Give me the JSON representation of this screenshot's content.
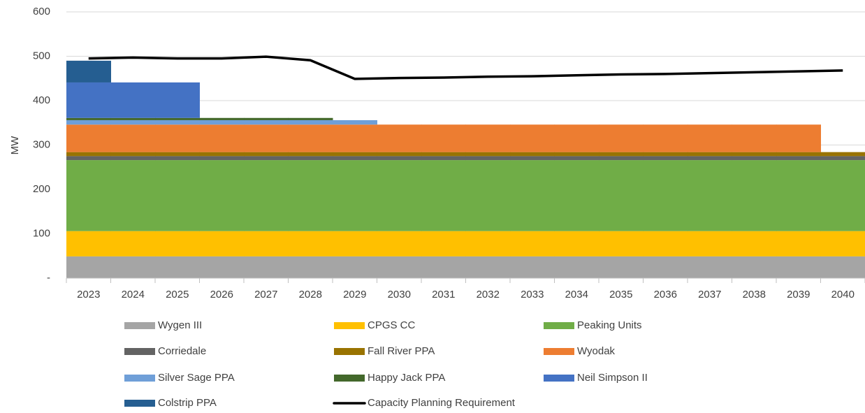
{
  "chart_data": {
    "type": "bar",
    "stacked": true,
    "y_label": "MW",
    "categories": [
      "2023",
      "2024",
      "2025",
      "2026",
      "2027",
      "2028",
      "2029",
      "2030",
      "2031",
      "2032",
      "2033",
      "2034",
      "2035",
      "2036",
      "2037",
      "2038",
      "2039",
      "2040"
    ],
    "ylim": [
      0,
      600
    ],
    "yticks": [
      {
        "value": 0,
        "label": "-"
      },
      100,
      200,
      300,
      400,
      500,
      600
    ],
    "grid": true,
    "legend": "bottom",
    "series": [
      {
        "name": "Wygen III",
        "color": "#a5a5a5",
        "values": [
          49,
          49,
          49,
          49,
          49,
          49,
          49,
          49,
          49,
          49,
          49,
          49,
          49,
          49,
          49,
          49,
          49,
          49
        ]
      },
      {
        "name": "CPGS CC",
        "color": "#ffc000",
        "values": [
          57,
          57,
          57,
          57,
          57,
          57,
          57,
          57,
          57,
          57,
          57,
          57,
          57,
          57,
          57,
          57,
          57,
          57
        ]
      },
      {
        "name": "Peaking Units",
        "color": "#70ad47",
        "values": [
          160,
          160,
          160,
          160,
          160,
          160,
          160,
          160,
          160,
          160,
          160,
          160,
          160,
          160,
          160,
          160,
          160,
          160
        ]
      },
      {
        "name": "Corriedale",
        "color": "#636363",
        "values": [
          9,
          9,
          9,
          9,
          9,
          9,
          9,
          9,
          9,
          9,
          9,
          9,
          9,
          9,
          9,
          9,
          9,
          9
        ]
      },
      {
        "name": "Fall River PPA",
        "color": "#997300",
        "values": [
          9,
          9,
          9,
          9,
          9,
          9,
          9,
          9,
          9,
          9,
          9,
          9,
          9,
          9,
          9,
          9,
          9,
          9
        ]
      },
      {
        "name": "Wyodak",
        "color": "#ed7d31",
        "values": [
          62,
          62,
          62,
          62,
          62,
          62,
          62,
          62,
          62,
          62,
          62,
          62,
          62,
          62,
          62,
          62,
          62,
          0
        ]
      },
      {
        "name": "Silver Sage PPA",
        "color": "#6f9fd8",
        "values": [
          10,
          10,
          10,
          10,
          10,
          10,
          10,
          0,
          0,
          0,
          0,
          0,
          0,
          0,
          0,
          0,
          0,
          0
        ]
      },
      {
        "name": "Happy Jack PPA",
        "color": "#43682b",
        "values": [
          5,
          5,
          5,
          5,
          5,
          5,
          0,
          0,
          0,
          0,
          0,
          0,
          0,
          0,
          0,
          0,
          0,
          0
        ]
      },
      {
        "name": "Neil Simpson II",
        "color": "#4472c4",
        "values": [
          80,
          80,
          80,
          0,
          0,
          0,
          0,
          0,
          0,
          0,
          0,
          0,
          0,
          0,
          0,
          0,
          0,
          0
        ]
      },
      {
        "name": "Colstrip PPA",
        "color": "#255e91",
        "values": [
          49,
          0,
          0,
          0,
          0,
          0,
          0,
          0,
          0,
          0,
          0,
          0,
          0,
          0,
          0,
          0,
          0,
          0
        ]
      },
      {
        "name": "Capacity Planning Requirement",
        "type": "line",
        "color": "#000000",
        "values": [
          495,
          497,
          495,
          495,
          499,
          491,
          449,
          451,
          452,
          454,
          455,
          457,
          459,
          460,
          462,
          464,
          466,
          468
        ]
      }
    ]
  }
}
